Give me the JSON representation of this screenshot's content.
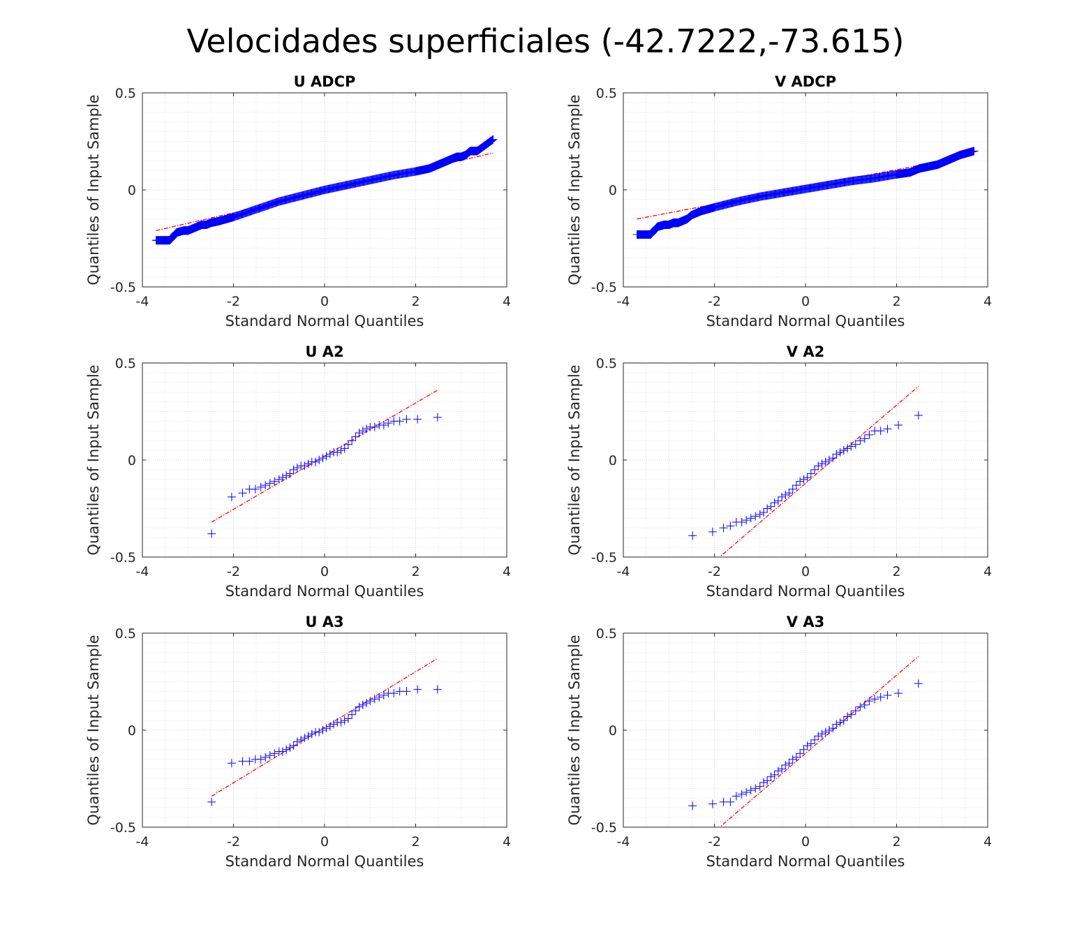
{
  "figure": {
    "title": "Velocidades superficiales (-42.7222,-73.615)",
    "colors": {
      "marker": "#0000ff",
      "reference_line": "#ff0000",
      "axis": "#262626",
      "grid": "#d9d9d9"
    }
  },
  "chart_data": [
    {
      "type": "scatter",
      "title": "U ADCP",
      "xlabel": "Standard Normal Quantiles",
      "ylabel": "Quantiles of Input Sample",
      "xlim": [
        -4,
        4
      ],
      "ylim": [
        -0.5,
        0.5
      ],
      "xticks": [
        "-4",
        "-2",
        "0",
        "2",
        "4"
      ],
      "yticks": [
        "-0.5",
        "0",
        "0.5"
      ],
      "grid": true,
      "dense": true,
      "series": [
        {
          "x": [
            -3.7,
            -3.4,
            -3.25,
            -3.1,
            -3.0,
            -2.9,
            -2.8,
            -2.7,
            -2.6,
            -2.5,
            -2.3,
            -2.0,
            -1.5,
            -1.0,
            -0.5,
            0,
            0.5,
            1.0,
            1.5,
            2.0,
            2.3,
            2.4,
            2.5,
            2.6,
            2.7,
            2.8,
            2.9,
            3.0,
            3.1,
            3.2,
            3.35,
            3.7
          ],
          "y": [
            -0.26,
            -0.26,
            -0.22,
            -0.21,
            -0.21,
            -0.2,
            -0.19,
            -0.18,
            -0.18,
            -0.17,
            -0.16,
            -0.14,
            -0.1,
            -0.06,
            -0.03,
            0,
            0.025,
            0.05,
            0.075,
            0.095,
            0.11,
            0.12,
            0.13,
            0.14,
            0.15,
            0.16,
            0.17,
            0.17,
            0.18,
            0.2,
            0.2,
            0.26
          ]
        }
      ],
      "reference_line": {
        "x": [
          -3.7,
          3.7
        ],
        "y": [
          -0.21,
          0.19
        ]
      }
    },
    {
      "type": "scatter",
      "title": "V ADCP",
      "xlabel": "Standard Normal Quantiles",
      "ylabel": "Quantiles of Input Sample",
      "xlim": [
        -4,
        4
      ],
      "ylim": [
        -0.5,
        0.5
      ],
      "xticks": [
        "-4",
        "-2",
        "0",
        "2",
        "4"
      ],
      "yticks": [
        "-0.5",
        "0",
        "0.5"
      ],
      "grid": true,
      "dense": true,
      "series": [
        {
          "x": [
            -3.7,
            -3.4,
            -3.25,
            -3.1,
            -3.0,
            -2.9,
            -2.8,
            -2.7,
            -2.6,
            -2.5,
            -2.3,
            -2.0,
            -1.5,
            -1.0,
            -0.5,
            0,
            0.5,
            1.0,
            1.5,
            2.0,
            2.3,
            2.5,
            2.7,
            2.9,
            3.0,
            3.1,
            3.2,
            3.4,
            3.7
          ],
          "y": [
            -0.23,
            -0.23,
            -0.19,
            -0.18,
            -0.18,
            -0.17,
            -0.17,
            -0.16,
            -0.15,
            -0.13,
            -0.11,
            -0.09,
            -0.06,
            -0.035,
            -0.015,
            0.005,
            0.025,
            0.045,
            0.06,
            0.08,
            0.09,
            0.11,
            0.12,
            0.13,
            0.14,
            0.15,
            0.16,
            0.18,
            0.2
          ]
        }
      ],
      "reference_line": {
        "x": [
          -3.7,
          3.7
        ],
        "y": [
          -0.15,
          0.18
        ]
      }
    },
    {
      "type": "scatter",
      "title": "U A2",
      "xlabel": "Standard Normal Quantiles",
      "ylabel": "Quantiles of Input Sample",
      "xlim": [
        -4,
        4
      ],
      "ylim": [
        -0.5,
        0.5
      ],
      "xticks": [
        "-4",
        "-2",
        "0",
        "2",
        "4"
      ],
      "yticks": [
        "-0.5",
        "0",
        "0.5"
      ],
      "grid": true,
      "dense": false,
      "series": [
        {
          "x": [
            -2.48,
            -2.04,
            -1.8,
            -1.65,
            -1.52,
            -1.4,
            -1.3,
            -1.2,
            -1.1,
            -1.0,
            -0.92,
            -0.84,
            -0.76,
            -0.68,
            -0.6,
            -0.52,
            -0.44,
            -0.36,
            -0.28,
            -0.2,
            -0.12,
            -0.04,
            0.04,
            0.12,
            0.2,
            0.28,
            0.36,
            0.44,
            0.52,
            0.6,
            0.68,
            0.76,
            0.84,
            0.92,
            1.0,
            1.1,
            1.2,
            1.3,
            1.4,
            1.52,
            1.65,
            1.8,
            2.04,
            2.48
          ],
          "y": [
            -0.38,
            -0.19,
            -0.17,
            -0.15,
            -0.15,
            -0.14,
            -0.13,
            -0.12,
            -0.11,
            -0.1,
            -0.09,
            -0.08,
            -0.07,
            -0.05,
            -0.04,
            -0.03,
            -0.03,
            -0.02,
            -0.01,
            -0.01,
            0.0,
            0.01,
            0.02,
            0.03,
            0.04,
            0.04,
            0.05,
            0.06,
            0.08,
            0.1,
            0.12,
            0.14,
            0.15,
            0.16,
            0.17,
            0.17,
            0.18,
            0.18,
            0.19,
            0.2,
            0.2,
            0.21,
            0.21,
            0.22
          ]
        }
      ],
      "reference_line": {
        "x": [
          -2.48,
          2.48
        ],
        "y": [
          -0.32,
          0.36
        ]
      }
    },
    {
      "type": "scatter",
      "title": "V A2",
      "xlabel": "Standard Normal Quantiles",
      "ylabel": "Quantiles of Input Sample",
      "xlim": [
        -4,
        4
      ],
      "ylim": [
        -0.5,
        0.5
      ],
      "xticks": [
        "-4",
        "-2",
        "0",
        "2",
        "4"
      ],
      "yticks": [
        "-0.5",
        "0",
        "0.5"
      ],
      "grid": true,
      "dense": false,
      "series": [
        {
          "x": [
            -2.48,
            -2.04,
            -1.8,
            -1.65,
            -1.52,
            -1.4,
            -1.3,
            -1.2,
            -1.1,
            -1.0,
            -0.92,
            -0.84,
            -0.76,
            -0.68,
            -0.6,
            -0.52,
            -0.44,
            -0.36,
            -0.28,
            -0.2,
            -0.12,
            -0.04,
            0.04,
            0.12,
            0.2,
            0.28,
            0.36,
            0.44,
            0.52,
            0.6,
            0.68,
            0.76,
            0.84,
            0.92,
            1.0,
            1.1,
            1.2,
            1.3,
            1.4,
            1.52,
            1.65,
            1.8,
            2.04,
            2.48
          ],
          "y": [
            -0.39,
            -0.37,
            -0.35,
            -0.34,
            -0.32,
            -0.32,
            -0.31,
            -0.3,
            -0.29,
            -0.28,
            -0.27,
            -0.25,
            -0.24,
            -0.22,
            -0.21,
            -0.19,
            -0.18,
            -0.17,
            -0.15,
            -0.13,
            -0.11,
            -0.1,
            -0.09,
            -0.07,
            -0.05,
            -0.03,
            -0.02,
            -0.01,
            0.0,
            0.01,
            0.03,
            0.04,
            0.05,
            0.06,
            0.07,
            0.08,
            0.1,
            0.11,
            0.13,
            0.15,
            0.15,
            0.16,
            0.18,
            0.23
          ]
        }
      ],
      "reference_line": {
        "x": [
          -2.48,
          2.48
        ],
        "y": [
          -0.62,
          0.38
        ]
      }
    },
    {
      "type": "scatter",
      "title": "U A3",
      "xlabel": "Standard Normal Quantiles",
      "ylabel": "Quantiles of Input Sample",
      "xlim": [
        -4,
        4
      ],
      "ylim": [
        -0.5,
        0.5
      ],
      "xticks": [
        "-4",
        "-2",
        "0",
        "2",
        "4"
      ],
      "yticks": [
        "-0.5",
        "0",
        "0.5"
      ],
      "grid": true,
      "dense": false,
      "series": [
        {
          "x": [
            -2.48,
            -2.04,
            -1.8,
            -1.65,
            -1.52,
            -1.4,
            -1.3,
            -1.2,
            -1.1,
            -1.0,
            -0.92,
            -0.84,
            -0.76,
            -0.68,
            -0.6,
            -0.52,
            -0.44,
            -0.36,
            -0.28,
            -0.2,
            -0.12,
            -0.04,
            0.04,
            0.12,
            0.2,
            0.28,
            0.36,
            0.44,
            0.52,
            0.6,
            0.68,
            0.76,
            0.84,
            0.92,
            1.0,
            1.1,
            1.2,
            1.3,
            1.4,
            1.52,
            1.65,
            1.8,
            2.04,
            2.48
          ],
          "y": [
            -0.37,
            -0.17,
            -0.16,
            -0.16,
            -0.15,
            -0.15,
            -0.14,
            -0.13,
            -0.12,
            -0.11,
            -0.11,
            -0.1,
            -0.09,
            -0.08,
            -0.06,
            -0.05,
            -0.04,
            -0.03,
            -0.02,
            -0.01,
            -0.01,
            0.0,
            0.01,
            0.02,
            0.03,
            0.04,
            0.04,
            0.05,
            0.06,
            0.08,
            0.1,
            0.12,
            0.13,
            0.14,
            0.15,
            0.16,
            0.17,
            0.18,
            0.19,
            0.19,
            0.2,
            0.2,
            0.21,
            0.21
          ]
        }
      ],
      "reference_line": {
        "x": [
          -2.48,
          2.48
        ],
        "y": [
          -0.34,
          0.37
        ]
      }
    },
    {
      "type": "scatter",
      "title": "V A3",
      "xlabel": "Standard Normal Quantiles",
      "ylabel": "Quantiles of Input Sample",
      "xlim": [
        -4,
        4
      ],
      "ylim": [
        -0.5,
        0.5
      ],
      "xticks": [
        "-4",
        "-2",
        "0",
        "2",
        "4"
      ],
      "yticks": [
        "-0.5",
        "0",
        "0.5"
      ],
      "grid": true,
      "dense": false,
      "series": [
        {
          "x": [
            -2.48,
            -2.04,
            -1.8,
            -1.65,
            -1.52,
            -1.4,
            -1.3,
            -1.2,
            -1.1,
            -1.0,
            -0.92,
            -0.84,
            -0.76,
            -0.68,
            -0.6,
            -0.52,
            -0.44,
            -0.36,
            -0.28,
            -0.2,
            -0.12,
            -0.04,
            0.04,
            0.12,
            0.2,
            0.28,
            0.36,
            0.44,
            0.52,
            0.6,
            0.68,
            0.76,
            0.84,
            0.92,
            1.0,
            1.1,
            1.2,
            1.3,
            1.4,
            1.52,
            1.65,
            1.8,
            2.04,
            2.48
          ],
          "y": [
            -0.39,
            -0.38,
            -0.37,
            -0.37,
            -0.34,
            -0.33,
            -0.32,
            -0.31,
            -0.3,
            -0.29,
            -0.27,
            -0.26,
            -0.24,
            -0.23,
            -0.21,
            -0.2,
            -0.18,
            -0.17,
            -0.15,
            -0.14,
            -0.12,
            -0.1,
            -0.08,
            -0.07,
            -0.05,
            -0.03,
            -0.02,
            -0.01,
            0.0,
            0.01,
            0.03,
            0.04,
            0.05,
            0.07,
            0.08,
            0.1,
            0.12,
            0.13,
            0.15,
            0.16,
            0.17,
            0.18,
            0.19,
            0.24
          ]
        }
      ],
      "reference_line": {
        "x": [
          -2.48,
          2.48
        ],
        "y": [
          -0.62,
          0.38
        ]
      }
    }
  ]
}
